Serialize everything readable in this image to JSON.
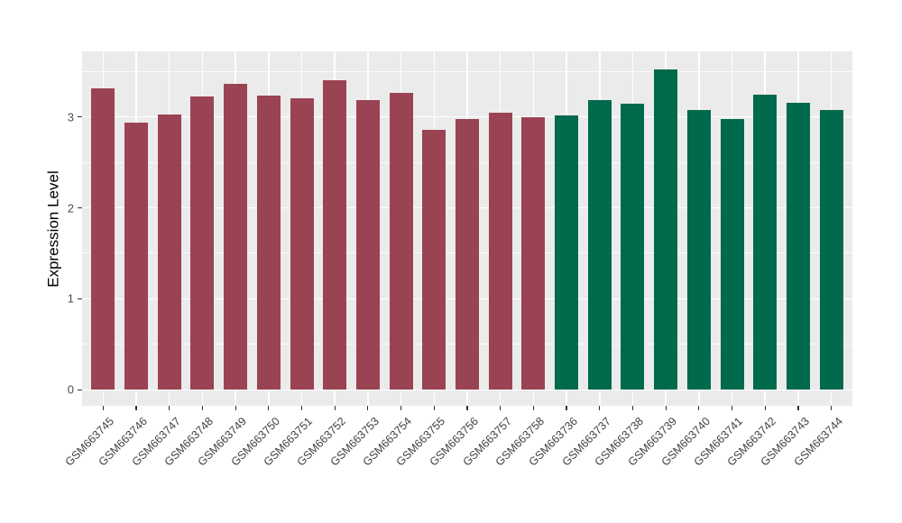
{
  "chart_data": {
    "type": "bar",
    "title": "",
    "xlabel": "",
    "ylabel": "Expression Level",
    "yticks": [
      0,
      1,
      2,
      3
    ],
    "ylim": [
      -0.175,
      3.72
    ],
    "grid": true,
    "legend": "none",
    "panel_background": "#ebebeb",
    "grid_color": "#ffffff",
    "axis_text_color": "#4d4d4d",
    "axis_title_color": "#000000",
    "group_colors": {
      "left-group-red": "#9a4352",
      "right-group-green": "#01694c"
    },
    "bars": [
      {
        "label": "GSM663745",
        "value": 3.31,
        "group": "left-group-red"
      },
      {
        "label": "GSM663746",
        "value": 2.94,
        "group": "left-group-red"
      },
      {
        "label": "GSM663747",
        "value": 3.03,
        "group": "left-group-red"
      },
      {
        "label": "GSM663748",
        "value": 3.22,
        "group": "left-group-red"
      },
      {
        "label": "GSM663749",
        "value": 3.36,
        "group": "left-group-red"
      },
      {
        "label": "GSM663750",
        "value": 3.23,
        "group": "left-group-red"
      },
      {
        "label": "GSM663751",
        "value": 3.2,
        "group": "left-group-red"
      },
      {
        "label": "GSM663752",
        "value": 3.4,
        "group": "left-group-red"
      },
      {
        "label": "GSM663753",
        "value": 3.18,
        "group": "left-group-red"
      },
      {
        "label": "GSM663754",
        "value": 3.26,
        "group": "left-group-red"
      },
      {
        "label": "GSM663755",
        "value": 2.86,
        "group": "left-group-red"
      },
      {
        "label": "GSM663756",
        "value": 2.98,
        "group": "left-group-red"
      },
      {
        "label": "GSM663757",
        "value": 3.05,
        "group": "left-group-red"
      },
      {
        "label": "GSM663758",
        "value": 3.0,
        "group": "left-group-red"
      },
      {
        "label": "GSM663736",
        "value": 3.02,
        "group": "right-group-green"
      },
      {
        "label": "GSM663737",
        "value": 3.18,
        "group": "right-group-green"
      },
      {
        "label": "GSM663738",
        "value": 3.15,
        "group": "right-group-green"
      },
      {
        "label": "GSM663739",
        "value": 3.52,
        "group": "right-group-green"
      },
      {
        "label": "GSM663740",
        "value": 3.08,
        "group": "right-group-green"
      },
      {
        "label": "GSM663741",
        "value": 2.98,
        "group": "right-group-green"
      },
      {
        "label": "GSM663742",
        "value": 3.24,
        "group": "right-group-green"
      },
      {
        "label": "GSM663743",
        "value": 3.16,
        "group": "right-group-green"
      },
      {
        "label": "GSM663744",
        "value": 3.08,
        "group": "right-group-green"
      }
    ]
  }
}
